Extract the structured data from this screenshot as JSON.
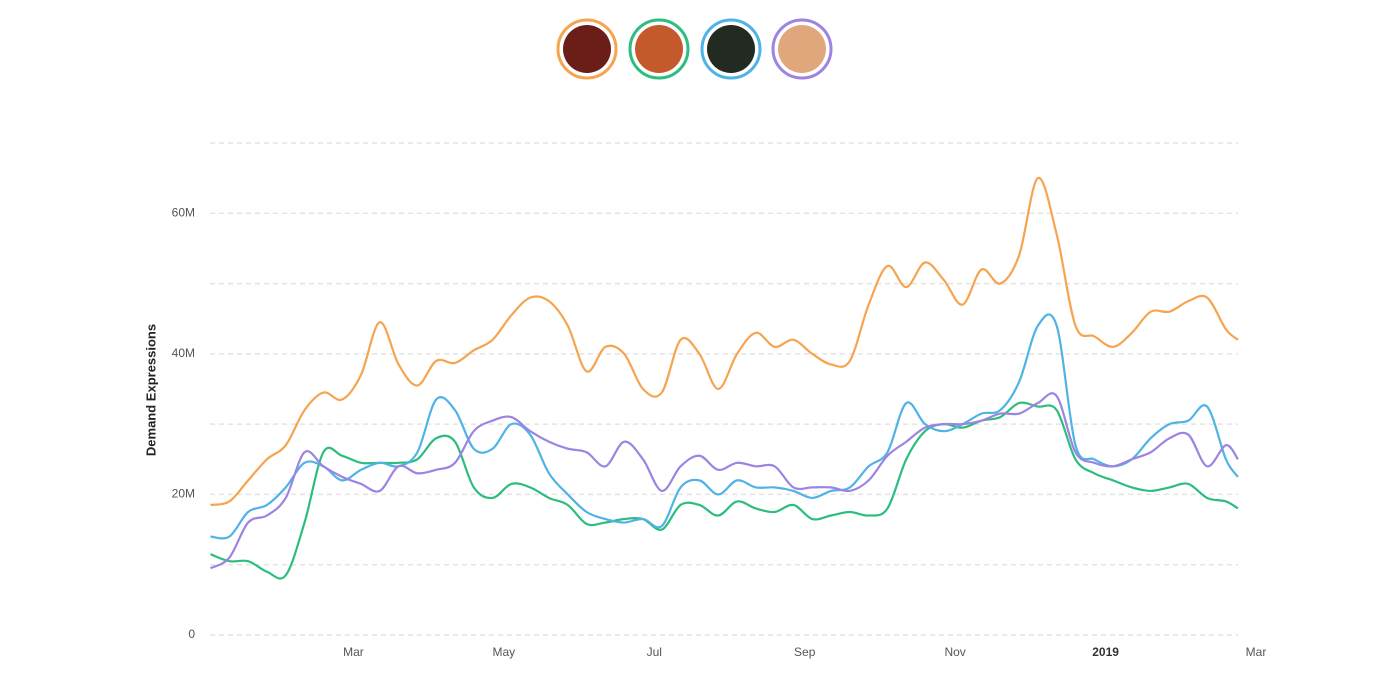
{
  "chart_data": {
    "type": "line",
    "y_label": "Demand Expressions",
    "x": [
      0.1,
      0.35,
      0.6,
      0.85,
      1.1,
      1.35,
      1.6,
      1.85,
      2.1,
      2.35,
      2.6,
      2.85,
      3.1,
      3.35,
      3.6,
      3.85,
      4.1,
      4.35,
      4.6,
      4.85,
      5.1,
      5.35,
      5.6,
      5.85,
      6.1,
      6.35,
      6.6,
      6.85,
      7.1,
      7.35,
      7.6,
      7.85,
      8.1,
      8.35,
      8.6,
      8.85,
      9.1,
      9.35,
      9.6,
      9.85,
      10.1,
      10.35,
      10.6,
      10.85,
      11.1,
      11.35,
      11.6,
      11.85,
      12.1,
      12.35,
      12.6,
      12.85,
      13.1,
      13.35,
      13.6,
      13.76
    ],
    "xlim": [
      0,
      14
    ],
    "xticks": [
      {
        "value": 2,
        "label": "Mar"
      },
      {
        "value": 4,
        "label": "May"
      },
      {
        "value": 6,
        "label": "Jul"
      },
      {
        "value": 8,
        "label": "Sep"
      },
      {
        "value": 10,
        "label": "Nov"
      },
      {
        "value": 12,
        "label": "2019",
        "bold": true
      },
      {
        "value": 14,
        "label": "Mar"
      }
    ],
    "ylim": [
      0,
      70000000
    ],
    "yticks": [
      0,
      {
        "value": 20000000,
        "label": "20M"
      },
      {
        "value": 40000000,
        "label": "40M"
      },
      {
        "value": 60000000,
        "label": "60M"
      }
    ],
    "ygrid": [
      0,
      10000000,
      20000000,
      30000000,
      40000000,
      50000000,
      60000000,
      70000000
    ],
    "series": [
      {
        "color": "#f5a44f",
        "values": [
          18500000,
          19000000,
          22000000,
          25000000,
          27000000,
          32000000,
          34500000,
          33500000,
          37000000,
          44500000,
          38500000,
          35500000,
          39000000,
          38700000,
          40500000,
          42000000,
          45500000,
          48000000,
          47500000,
          44000000,
          37500000,
          41000000,
          40000000,
          35000000,
          34500000,
          42000000,
          40000000,
          35000000,
          40000000,
          43000000,
          41000000,
          42000000,
          40000000,
          38500000,
          39000000,
          47000000,
          52500000,
          49500000,
          53000000,
          50500000,
          47000000,
          52000000,
          50000000,
          54000000,
          65000000,
          57000000,
          44000000,
          42500000,
          41000000,
          43000000,
          46000000,
          46000000,
          47500000,
          48000000,
          43500000,
          42000000
        ]
      },
      {
        "color": "#2dbd7e",
        "values": [
          11500000,
          10500000,
          10500000,
          9000000,
          8500000,
          16000000,
          26000000,
          25500000,
          24500000,
          24500000,
          24500000,
          25000000,
          28000000,
          27500000,
          21000000,
          19500000,
          21500000,
          21000000,
          19500000,
          18500000,
          15800000,
          16000000,
          16500000,
          16500000,
          15000000,
          18500000,
          18500000,
          17000000,
          19000000,
          18000000,
          17500000,
          18500000,
          16500000,
          17000000,
          17500000,
          17000000,
          18000000,
          25000000,
          29000000,
          30000000,
          29500000,
          30500000,
          31000000,
          33000000,
          32500000,
          32000000,
          25000000,
          23000000,
          22000000,
          21000000,
          20500000,
          21000000,
          21500000,
          19500000,
          19000000,
          18000000
        ]
      },
      {
        "color": "#4fb3e6",
        "values": [
          14000000,
          14000000,
          17500000,
          18500000,
          21000000,
          24500000,
          24000000,
          22000000,
          23500000,
          24500000,
          24000000,
          26000000,
          33500000,
          32000000,
          26500000,
          26500000,
          30000000,
          28500000,
          23000000,
          20000000,
          17500000,
          16500000,
          16000000,
          16500000,
          15500000,
          21000000,
          22000000,
          20000000,
          22000000,
          21000000,
          21000000,
          20500000,
          19500000,
          20500000,
          21000000,
          24000000,
          26000000,
          33000000,
          30000000,
          29000000,
          30000000,
          31500000,
          32000000,
          36000000,
          44000000,
          44000000,
          27000000,
          25000000,
          24000000,
          25000000,
          28000000,
          30000000,
          30500000,
          32500000,
          25000000,
          22500000
        ]
      },
      {
        "color": "#9d83e2",
        "values": [
          9500000,
          11000000,
          16000000,
          17000000,
          19500000,
          26000000,
          24000000,
          22500000,
          21500000,
          20500000,
          24000000,
          23000000,
          23500000,
          24500000,
          29000000,
          30500000,
          31000000,
          29000000,
          27500000,
          26500000,
          26000000,
          24000000,
          27500000,
          25000000,
          20500000,
          24000000,
          25500000,
          23500000,
          24500000,
          24000000,
          24000000,
          21000000,
          21000000,
          21000000,
          20500000,
          22000000,
          25500000,
          27500000,
          29500000,
          30000000,
          30000000,
          30500000,
          31500000,
          31500000,
          33000000,
          34000000,
          26000000,
          24500000,
          24000000,
          25000000,
          26000000,
          28000000,
          28500000,
          24000000,
          27000000,
          25000000
        ]
      }
    ]
  }
}
